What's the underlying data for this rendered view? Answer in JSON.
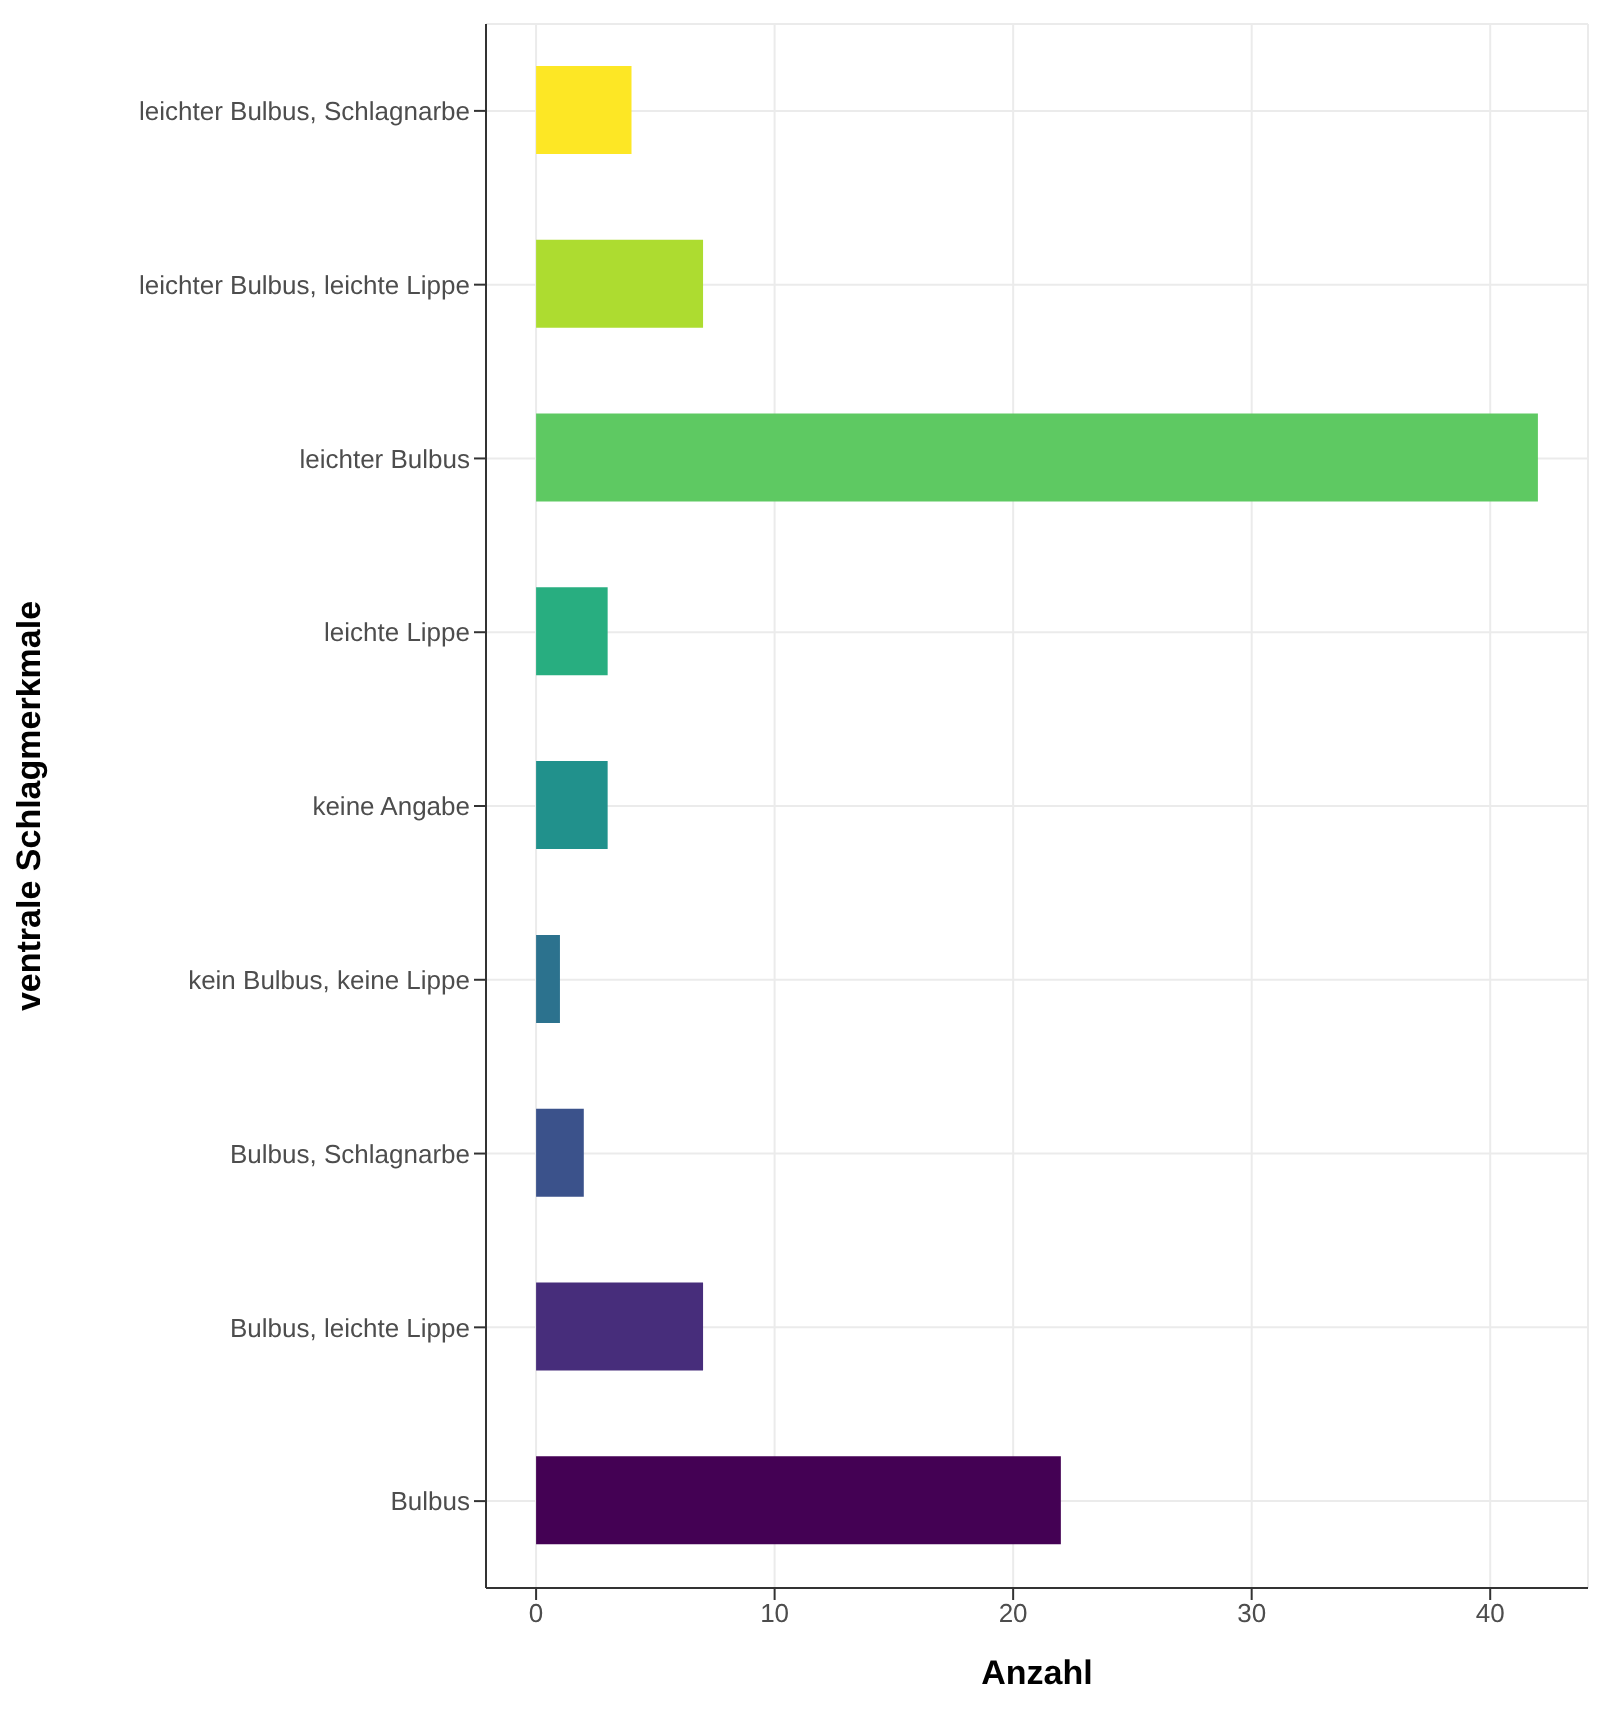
{
  "chart_data": {
    "type": "bar",
    "orientation": "horizontal",
    "xlabel": "Anzahl",
    "ylabel": "ventrale Schlagmerkmale",
    "categories": [
      "leichter Bulbus, Schlagnarbe",
      "leichter Bulbus, leichte Lippe",
      "leichter Bulbus",
      "leichte Lippe",
      "keine Angabe",
      "kein Bulbus, keine Lippe",
      "Bulbus, Schlagnarbe",
      "Bulbus, leichte Lippe",
      "Bulbus"
    ],
    "values": [
      4,
      7,
      42,
      3,
      3,
      1,
      2,
      7,
      22
    ],
    "colors": [
      "#fde725",
      "#addc30",
      "#5ec962",
      "#28ae80",
      "#21918c",
      "#2c728e",
      "#3b528b",
      "#472d7b",
      "#440154"
    ],
    "xlim": [
      -2.1,
      44.1
    ],
    "xticks": [
      0,
      10,
      20,
      30,
      40
    ],
    "grid": true
  }
}
